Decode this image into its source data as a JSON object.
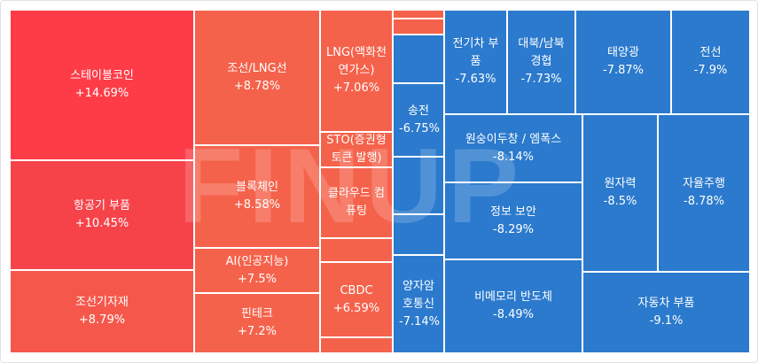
{
  "chart_data": {
    "type": "treemap",
    "colors": {
      "up_strong": "#fe3c47",
      "up_mid": "#f4464b",
      "up": "#f5624b",
      "down": "#2b7acd"
    },
    "watermark": "FINUP",
    "cells": [
      {
        "label": "스테이블코인",
        "change": "+14.69%",
        "value": 14.69,
        "color": "#fe3c47"
      },
      {
        "label": "항공기 부품",
        "change": "+10.45%",
        "value": 10.45,
        "color": "#f6434a"
      },
      {
        "label": "조선기자재",
        "change": "+8.79%",
        "value": 8.79,
        "color": "#f5584b"
      },
      {
        "label": "조선/LNG선",
        "change": "+8.78%",
        "value": 8.78,
        "color": "#f5624b"
      },
      {
        "label": "블록체인",
        "change": "+8.58%",
        "value": 8.58,
        "color": "#f5624b"
      },
      {
        "label": "AI(인공지능)",
        "change": "+7.5%",
        "value": 7.5,
        "color": "#f5624b"
      },
      {
        "label": "핀테크",
        "change": "+7.2%",
        "value": 7.2,
        "color": "#f5624b"
      },
      {
        "label": "LNG(액화천연가스)",
        "change": "+7.06%",
        "value": 7.06,
        "color": "#f5624b"
      },
      {
        "label": "STO(증권형 토큰 발행)",
        "change": "",
        "value": null,
        "color": "#f5624b"
      },
      {
        "label": "클라우드 컴퓨팅",
        "change": "",
        "value": null,
        "color": "#f5624b"
      },
      {
        "label": "",
        "change": "",
        "value": null,
        "color": "#f5624b"
      },
      {
        "label": "CBDC",
        "change": "+6.59%",
        "value": 6.59,
        "color": "#f5624b"
      },
      {
        "label": "",
        "change": "",
        "value": null,
        "color": "#f5624b"
      },
      {
        "label": "",
        "change": "",
        "value": null,
        "color": "#f5624b"
      },
      {
        "label": "",
        "change": "",
        "value": null,
        "color": "#f5624b"
      },
      {
        "label": "",
        "change": "",
        "value": null,
        "color": "#2b7acd"
      },
      {
        "label": "송전",
        "change": "-6.75%",
        "value": -6.75,
        "color": "#2b7acd"
      },
      {
        "label": "",
        "change": "",
        "value": null,
        "color": "#2b7acd"
      },
      {
        "label": "",
        "change": "",
        "value": null,
        "color": "#2b7acd"
      },
      {
        "label": "양자암호통신",
        "change": "-7.14%",
        "value": -7.14,
        "color": "#2b7acd"
      },
      {
        "label": "전기차 부품",
        "change": "-7.63%",
        "value": -7.63,
        "color": "#2b7acd"
      },
      {
        "label": "대북/남북경협",
        "change": "-7.73%",
        "value": -7.73,
        "color": "#2b7acd"
      },
      {
        "label": "태양광",
        "change": "-7.87%",
        "value": -7.87,
        "color": "#2b7acd"
      },
      {
        "label": "전선",
        "change": "-7.9%",
        "value": -7.9,
        "color": "#2b7acd"
      },
      {
        "label": "원숭이두창 / 엠폭스",
        "change": "-8.14%",
        "value": -8.14,
        "color": "#2b7acd"
      },
      {
        "label": "정보 보안",
        "change": "-8.29%",
        "value": -8.29,
        "color": "#2b7acd"
      },
      {
        "label": "비메모리 반도체",
        "change": "-8.49%",
        "value": -8.49,
        "color": "#2b7acd"
      },
      {
        "label": "원자력",
        "change": "-8.5%",
        "value": -8.5,
        "color": "#2b7acd"
      },
      {
        "label": "자율주행",
        "change": "-8.78%",
        "value": -8.78,
        "color": "#2b7acd"
      },
      {
        "label": "자동차 부품",
        "change": "-9.1%",
        "value": -9.1,
        "color": "#2b7acd"
      }
    ]
  }
}
